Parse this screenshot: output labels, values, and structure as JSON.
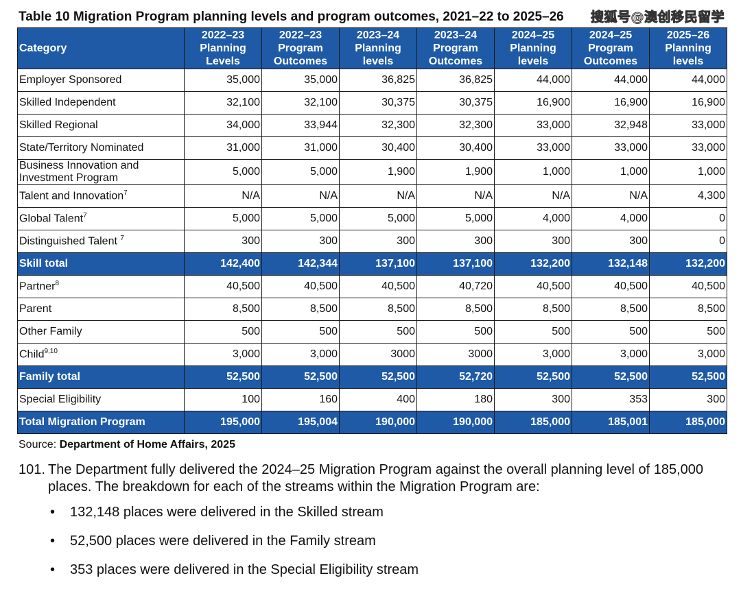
{
  "title": "Table 10 Migration Program planning levels and program outcomes, 2021–22 to 2025–26",
  "watermark": "搜狐号@澳创移民留学",
  "table": {
    "headers": [
      "Category",
      "2022–23 Planning Levels",
      "2022–23 Program Outcomes",
      "2023–24 Planning levels",
      "2023–24 Program Outcomes",
      "2024–25 Planning levels",
      "2024–25 Program Outcomes",
      "2025–26 Planning levels"
    ],
    "rows": [
      {
        "category": "Employer Sponsored",
        "values": [
          "35,000",
          "35,000",
          "36,825",
          "36,825",
          "44,000",
          "44,000",
          "44,000"
        ]
      },
      {
        "category": "Skilled Independent",
        "values": [
          "32,100",
          "32,100",
          "30,375",
          "30,375",
          "16,900",
          "16,900",
          "16,900"
        ]
      },
      {
        "category": "Skilled Regional",
        "values": [
          "34,000",
          "33,944",
          "32,300",
          "32,300",
          "33,000",
          "32,948",
          "33,000"
        ]
      },
      {
        "category": "State/Territory Nominated",
        "values": [
          "31,000",
          "31,000",
          "30,400",
          "30,400",
          "33,000",
          "33,000",
          "33,000"
        ]
      },
      {
        "category": "Business Innovation and Investment Program",
        "values": [
          "5,000",
          "5,000",
          "1,900",
          "1,900",
          "1,000",
          "1,000",
          "1,000"
        ]
      },
      {
        "category": "Talent and Innovation",
        "sup": "7",
        "values": [
          "N/A",
          "N/A",
          "N/A",
          "N/A",
          "N/A",
          "N/A",
          "4,300"
        ]
      },
      {
        "category": "Global Talent",
        "sup": "7",
        "values": [
          "5,000",
          "5,000",
          "5,000",
          "5,000",
          "4,000",
          "4,000",
          "0"
        ]
      },
      {
        "category": "Distinguished Talent ",
        "sup": "7",
        "values": [
          "300",
          "300",
          "300",
          "300",
          "300",
          "300",
          "0"
        ]
      },
      {
        "category": "Skill total",
        "total": true,
        "values": [
          "142,400",
          "142,344",
          "137,100",
          "137,100",
          "132,200",
          "132,148",
          "132,200"
        ]
      },
      {
        "category": "Partner",
        "sup": "8",
        "values": [
          "40,500",
          "40,500",
          "40,500",
          "40,720",
          "40,500",
          "40,500",
          "40,500"
        ]
      },
      {
        "category": "Parent",
        "values": [
          "8,500",
          "8,500",
          "8,500",
          "8,500",
          "8,500",
          "8,500",
          "8,500"
        ]
      },
      {
        "category": "Other Family",
        "values": [
          "500",
          "500",
          "500",
          "500",
          "500",
          "500",
          "500"
        ]
      },
      {
        "category": "Child",
        "sup": "9,10",
        "values": [
          "3,000",
          "3,000",
          "3000",
          "3000",
          "3,000",
          "3,000",
          "3,000"
        ]
      },
      {
        "category": "Family total",
        "total": true,
        "values": [
          "52,500",
          "52,500",
          "52,500",
          "52,720",
          "52,500",
          "52,500",
          "52,500"
        ]
      },
      {
        "category": "Special Eligibility",
        "values": [
          "100",
          "160",
          "400",
          "180",
          "300",
          "353",
          "300"
        ]
      },
      {
        "category": "Total Migration Program",
        "total": true,
        "values": [
          "195,000",
          "195,004",
          "190,000",
          "190,000",
          "185,000",
          "185,001",
          "185,000"
        ]
      }
    ]
  },
  "source": {
    "label": "Source: ",
    "value": "Department of Home Affairs, 2025"
  },
  "paragraph": {
    "number": "101.",
    "text": "The Department fully delivered the 2024–25 Migration Program against the overall planning level of 185,000 places. The breakdown for each of the streams within the Migration Program are:"
  },
  "bullets": [
    "132,148 places were delivered in the Skilled stream",
    "52,500 places were delivered in the Family stream",
    "353 places were delivered in the Special Eligibility stream"
  ],
  "bullet_symbol": "•"
}
